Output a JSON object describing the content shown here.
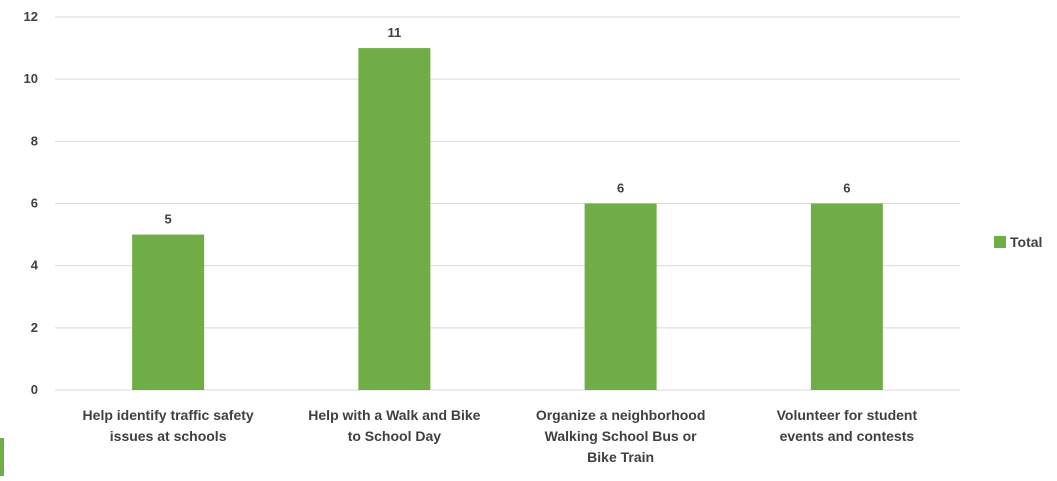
{
  "chart_data": {
    "type": "bar",
    "categories": [
      [
        "Help identify traffic safety",
        "issues at schools"
      ],
      [
        "Help with a Walk and Bike",
        "to School Day"
      ],
      [
        "Organize a neighborhood",
        "Walking School Bus or",
        "Bike Train"
      ],
      [
        "Volunteer for student",
        "events and contests"
      ]
    ],
    "series": [
      {
        "name": "Total",
        "values": [
          5,
          11,
          6,
          6
        ],
        "color": "#70ad47"
      }
    ],
    "data_labels": [
      "5",
      "11",
      "6",
      "6"
    ],
    "ylim": [
      0,
      12
    ],
    "yticks": [
      "0",
      "2",
      "4",
      "6",
      "8",
      "10",
      "12"
    ],
    "grid": true,
    "legend": "right"
  }
}
